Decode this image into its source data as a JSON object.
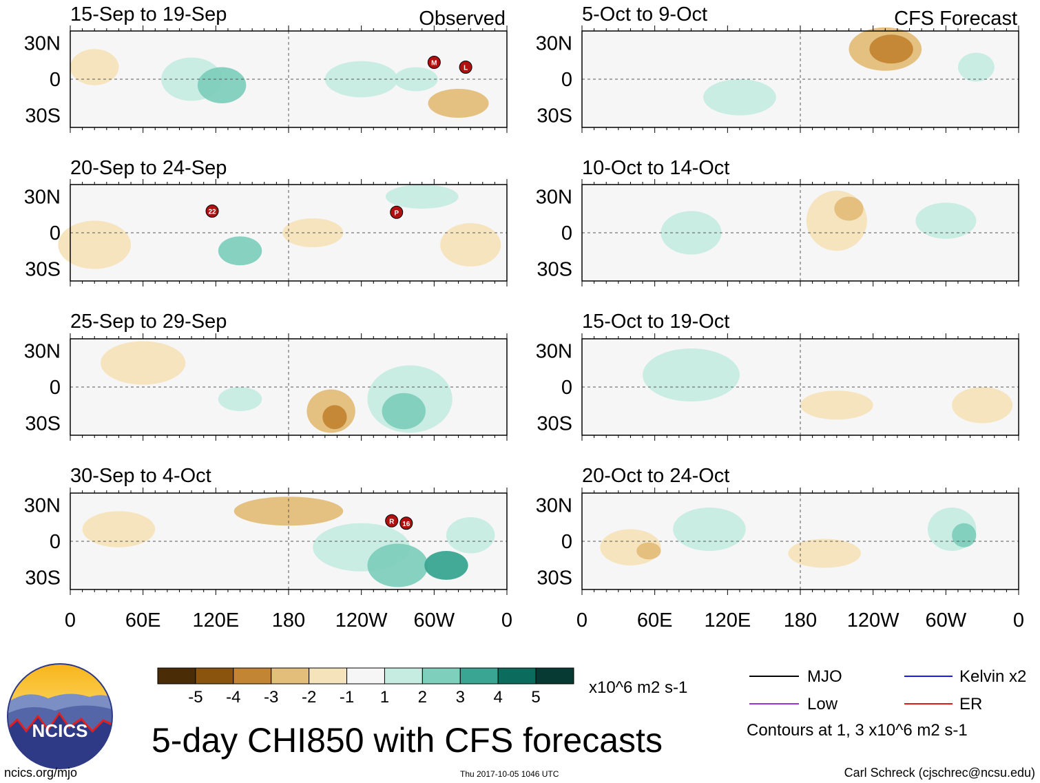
{
  "chart_data": {
    "type": "heatmap",
    "title": "5-day CHI850 with CFS forecasts",
    "units": "x10^6 m2 s-1",
    "lat_ticks": [
      "30N",
      "0",
      "30S"
    ],
    "lon_ticks": [
      "0",
      "60E",
      "120E",
      "180",
      "120W",
      "60W",
      "0"
    ],
    "lat_range": [
      -40,
      40
    ],
    "lon_range": [
      0,
      360
    ],
    "columns": [
      {
        "label": "Observed",
        "panels": [
          "15-Sep to 19-Sep",
          "20-Sep to 24-Sep",
          "25-Sep to 29-Sep",
          "30-Sep to 4-Oct"
        ]
      },
      {
        "label": "CFS Forecast",
        "panels": [
          "5-Oct to 9-Oct",
          "10-Oct to 14-Oct",
          "15-Oct to 19-Oct",
          "20-Oct to 24-Oct"
        ]
      }
    ],
    "colorbar": {
      "labels": [
        "-5",
        "-4",
        "-3",
        "-2",
        "-1",
        "1",
        "2",
        "3",
        "4",
        "5"
      ],
      "colors": [
        "#4a2d07",
        "#8a540f",
        "#c28533",
        "#e3bd7a",
        "#f5e3bc",
        "#f6f6f6",
        "#c6ece2",
        "#7fcfbd",
        "#3aa592",
        "#0b6b5c",
        "#063a32"
      ]
    },
    "legend": [
      {
        "name": "MJO",
        "color": "#000000"
      },
      {
        "name": "Kelvin x2",
        "color": "#1a1ae6"
      },
      {
        "name": "Low",
        "color": "#9a30e0"
      },
      {
        "name": "ER",
        "color": "#e01a1a"
      }
    ],
    "contour_note": "Contours at 1, 3 x10^6 m2 s-1",
    "storm_markers": [
      {
        "panel": 0,
        "label": "M",
        "lon": 300,
        "lat": 14
      },
      {
        "panel": 0,
        "label": "L",
        "lon": 326,
        "lat": 10
      },
      {
        "panel": 1,
        "label": "22",
        "lon": 117,
        "lat": 18
      },
      {
        "panel": 1,
        "label": "P",
        "lon": 269,
        "lat": 17
      },
      {
        "panel": 3,
        "label": "R",
        "lon": 265,
        "lat": 17
      },
      {
        "panel": 3,
        "label": "16",
        "lon": 277,
        "lat": 15
      }
    ]
  },
  "footer": {
    "logo_text": "NCICS",
    "site": "ncics.org/mjo",
    "timestamp": "Thu 2017-10-05 1046 UTC",
    "author": "Carl Schreck (cjschrec@ncsu.edu)"
  }
}
